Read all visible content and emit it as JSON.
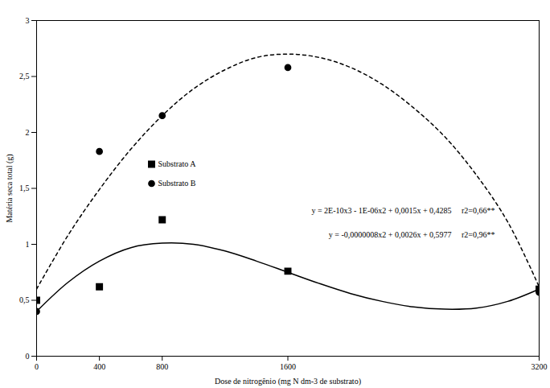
{
  "chart_data": {
    "type": "scatter",
    "x_label": "Dose de nitrogênio (mg N dm-3 de substrato)",
    "y_label": "Matéria seca total (g)",
    "x": [
      0,
      400,
      800,
      1600,
      3200
    ],
    "series": [
      {
        "name": "Substrato A",
        "color": "#000000",
        "marker": "square",
        "line_style": "solid",
        "values": [
          0.5,
          0.62,
          1.22,
          0.76,
          0.6
        ],
        "trend_x": [
          0,
          200,
          400,
          600,
          800,
          1000,
          1200,
          1400,
          1600,
          1800,
          2000,
          2200,
          2400,
          2600,
          2800,
          3000,
          3200
        ],
        "trend_values": [
          0.4,
          0.66,
          0.85,
          0.97,
          1.01,
          1.0,
          0.94,
          0.85,
          0.75,
          0.65,
          0.56,
          0.49,
          0.44,
          0.42,
          0.43,
          0.49,
          0.6
        ]
      },
      {
        "name": "Substrato B",
        "color": "#000000",
        "marker": "circle",
        "line_style": "dashed",
        "values": [
          0.4,
          1.83,
          2.15,
          2.58,
          0.57
        ],
        "trend_x": [
          0,
          200,
          400,
          600,
          800,
          1000,
          1200,
          1400,
          1600,
          1800,
          2000,
          2200,
          2400,
          2600,
          2800,
          3000,
          3200
        ],
        "trend_values": [
          0.6,
          1.08,
          1.49,
          1.85,
          2.15,
          2.39,
          2.56,
          2.67,
          2.7,
          2.67,
          2.58,
          2.43,
          2.22,
          1.96,
          1.62,
          1.2,
          0.62
        ]
      }
    ],
    "annotations": [
      "y = 2E-10x3 - 1E-06x2 + 0,0015x + 0,4285     r2=0,66**",
      "y = -0,0000008x2 + 0,0026x + 0,5977     r2=0,96**"
    ],
    "xlim": [
      0,
      3200
    ],
    "xticks": [
      0,
      400,
      800,
      1600,
      3200
    ],
    "ylim": [
      0,
      3
    ],
    "yticks": [
      0,
      {
        "value": 0.5,
        "label": "0,5"
      },
      1,
      {
        "value": 1.5,
        "label": "1,5"
      },
      2,
      {
        "value": 2.5,
        "label": "2,5"
      },
      3
    ],
    "grid": false,
    "legend": "left"
  }
}
